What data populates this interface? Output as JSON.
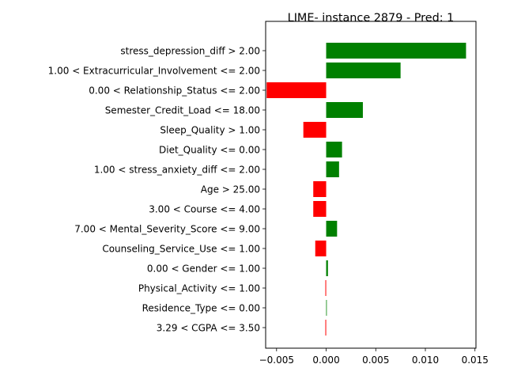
{
  "chart_data": {
    "type": "bar",
    "orientation": "horizontal",
    "title": "LIME- instance 2879 - Pred: 1",
    "xlabel": "",
    "ylabel": "",
    "xlim": [
      -0.0061,
      0.0151
    ],
    "xticks": [
      -0.005,
      0.0,
      0.005,
      0.01,
      0.015
    ],
    "xtick_labels": [
      "−0.005",
      "0.000",
      "0.005",
      "0.010",
      "0.015"
    ],
    "grid": false,
    "colors": {
      "positive": "#008000",
      "negative": "#ff0000"
    },
    "categories": [
      "stress_depression_diff > 2.00",
      "1.00 < Extracurricular_Involvement <= 2.00",
      "0.00 < Relationship_Status <= 2.00",
      "Semester_Credit_Load <= 18.00",
      "Sleep_Quality > 1.00",
      "Diet_Quality <= 0.00",
      "1.00 < stress_anxiety_diff <= 2.00",
      "Age > 25.00",
      "3.00 < Course <= 4.00",
      "7.00 < Mental_Severity_Score <= 9.00",
      "Counseling_Service_Use <= 1.00",
      "0.00 < Gender <= 1.00",
      "Physical_Activity <= 1.00",
      "Residence_Type <= 0.00",
      "3.29 < CGPA <= 3.50"
    ],
    "values": [
      0.0141,
      0.0075,
      -0.006,
      0.0037,
      -0.0023,
      0.0016,
      0.0013,
      -0.0013,
      -0.0013,
      0.0011,
      -0.0011,
      0.00018,
      -8e-05,
      6e-05,
      -8e-05
    ]
  }
}
